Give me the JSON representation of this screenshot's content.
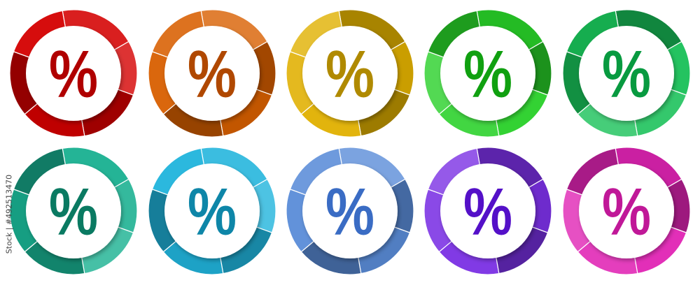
{
  "watermark": "Stock | #492513470",
  "symbol": "%",
  "icons": [
    {
      "name": "red",
      "ring": "#d40000",
      "glyph": "#b00000"
    },
    {
      "name": "orange",
      "ring": "#d85f00",
      "glyph": "#b04800"
    },
    {
      "name": "yellow",
      "ring": "#e0b000",
      "glyph": "#b08a00"
    },
    {
      "name": "green",
      "ring": "#28d028",
      "glyph": "#10a010"
    },
    {
      "name": "emerald",
      "ring": "#18c058",
      "glyph": "#089a40"
    },
    {
      "name": "teal",
      "ring": "#18b090",
      "glyph": "#0a7a62"
    },
    {
      "name": "cyan",
      "ring": "#20b4dc",
      "glyph": "#0e86a8"
    },
    {
      "name": "blue",
      "ring": "#5a8cd8",
      "glyph": "#3a6cc4"
    },
    {
      "name": "purple",
      "ring": "#7a30e4",
      "glyph": "#5410c8"
    },
    {
      "name": "magenta",
      "ring": "#e024b4",
      "glyph": "#c01898"
    }
  ]
}
